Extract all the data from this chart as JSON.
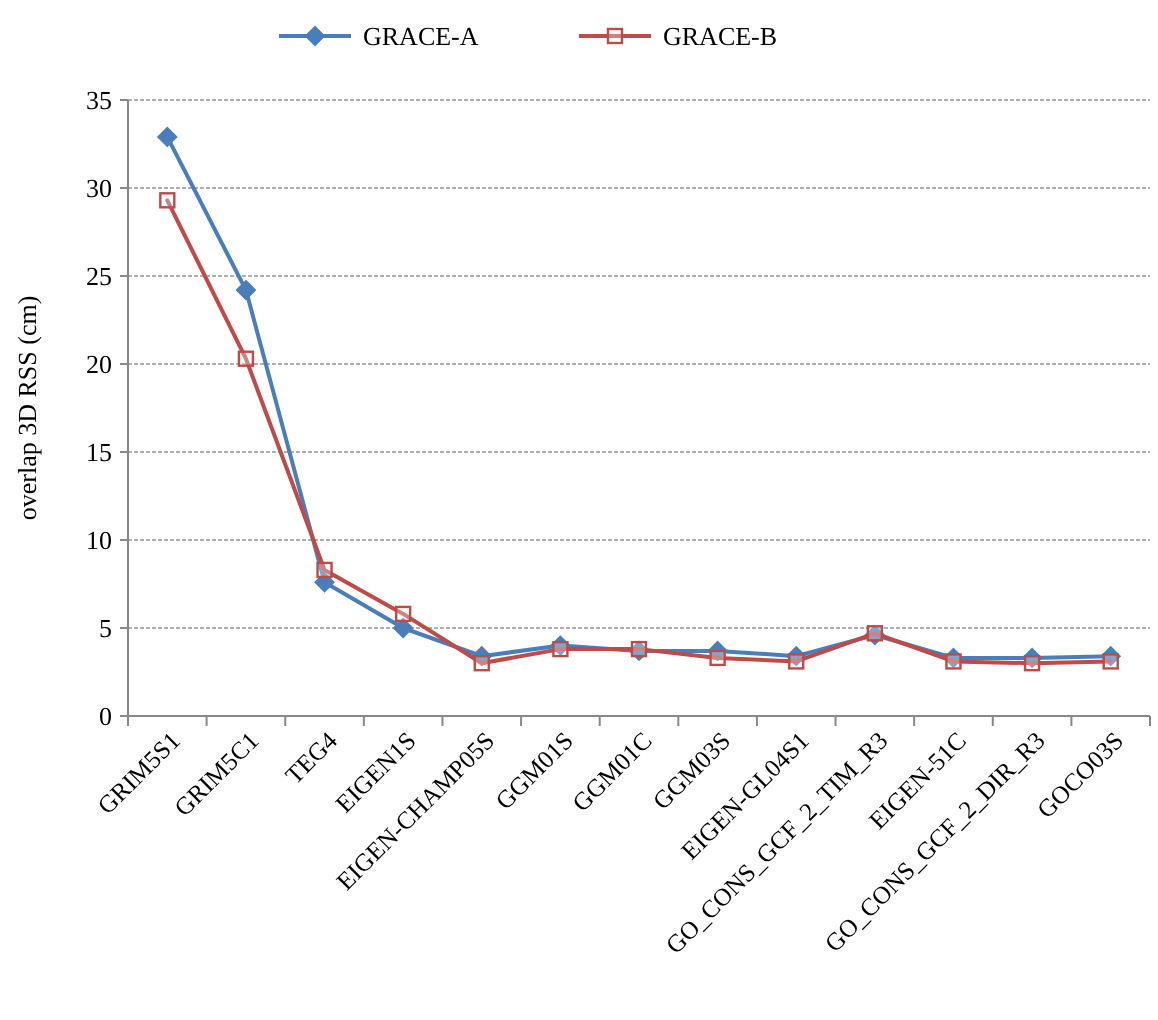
{
  "chart_data": {
    "type": "line",
    "ylabel": "overlap 3D RSS (cm)",
    "categories": [
      "GRIM5S1",
      "GRIM5C1",
      "TEG4",
      "EIGEN1S",
      "EIGEN-CHAMP05S",
      "GGM01S",
      "GGM01C",
      "GGM03S",
      "EIGEN-GL04S1",
      "GO_CONS_GCF_2_TIM_R3",
      "EIGEN-51C",
      "GO_CONS_GCF_2_DIR_R3",
      "GOCO03S"
    ],
    "series": [
      {
        "name": "GRACE-A",
        "color": "#4a7ebb",
        "marker": "diamond",
        "values": [
          32.9,
          24.2,
          7.6,
          5.0,
          3.4,
          4.0,
          3.7,
          3.7,
          3.4,
          4.6,
          3.3,
          3.3,
          3.4
        ]
      },
      {
        "name": "GRACE-B",
        "color": "#be4b48",
        "marker": "square",
        "values": [
          29.3,
          20.3,
          8.3,
          5.8,
          3.0,
          3.8,
          3.8,
          3.3,
          3.1,
          4.7,
          3.1,
          3.0,
          3.1
        ]
      }
    ],
    "ylim": [
      0,
      35
    ],
    "yticks": [
      0,
      5,
      10,
      15,
      20,
      25,
      30,
      35
    ],
    "grid": "y",
    "legend": "top"
  }
}
